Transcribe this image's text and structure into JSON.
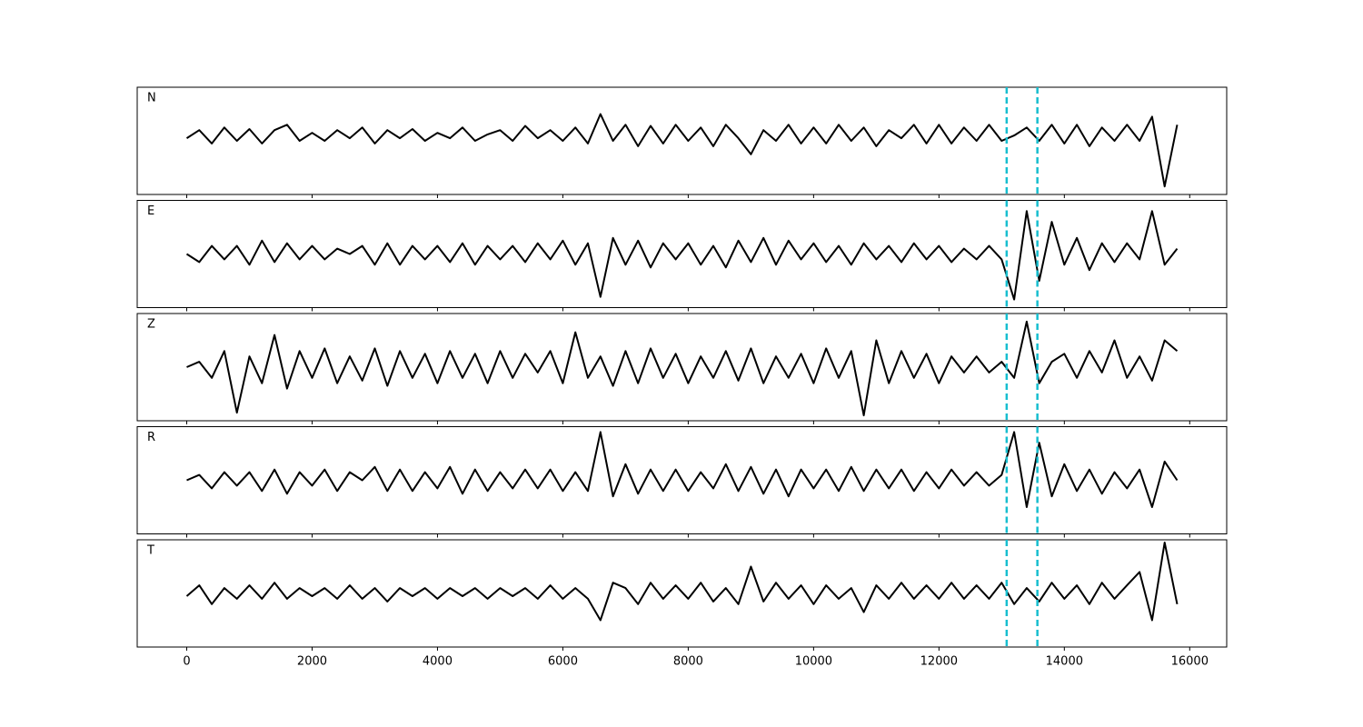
{
  "chart_data": {
    "type": "line",
    "subplots": true,
    "x": [
      0,
      200,
      400,
      600,
      800,
      1000,
      1200,
      1400,
      1600,
      1800,
      2000,
      2200,
      2400,
      2600,
      2800,
      3000,
      3200,
      3400,
      3600,
      3800,
      4000,
      4200,
      4400,
      4600,
      4800,
      5000,
      5200,
      5400,
      5600,
      5800,
      6000,
      6200,
      6400,
      6600,
      6800,
      7000,
      7200,
      7400,
      7600,
      7800,
      8000,
      8200,
      8400,
      8600,
      8800,
      9000,
      9200,
      9400,
      9600,
      9800,
      10000,
      10200,
      10400,
      10600,
      10800,
      11000,
      11200,
      11400,
      11600,
      11800,
      12000,
      12200,
      12400,
      12600,
      12800,
      13000,
      13200,
      13400,
      13600,
      13800,
      14000,
      14200,
      14400,
      14600,
      14800,
      15000,
      15200,
      15400,
      15600,
      15800
    ],
    "xlim": [
      -790,
      16590
    ],
    "xticks": [
      0,
      2000,
      4000,
      6000,
      8000,
      10000,
      12000,
      14000,
      16000
    ],
    "ylim": [
      -1,
      1
    ],
    "series": [
      {
        "name": "N",
        "color": "#000000",
        "values": [
          0.05,
          0.2,
          -0.05,
          0.25,
          0.0,
          0.22,
          -0.05,
          0.2,
          0.3,
          0.0,
          0.15,
          0.0,
          0.2,
          0.05,
          0.25,
          -0.05,
          0.2,
          0.05,
          0.22,
          0.0,
          0.15,
          0.05,
          0.25,
          0.0,
          0.12,
          0.2,
          0.0,
          0.28,
          0.05,
          0.2,
          0.0,
          0.25,
          -0.05,
          0.5,
          0.0,
          0.3,
          -0.1,
          0.28,
          -0.05,
          0.3,
          0.0,
          0.25,
          -0.1,
          0.3,
          0.05,
          -0.25,
          0.2,
          0.0,
          0.3,
          -0.05,
          0.25,
          -0.05,
          0.3,
          0.0,
          0.25,
          -0.1,
          0.2,
          0.05,
          0.3,
          -0.05,
          0.3,
          -0.05,
          0.25,
          0.0,
          0.3,
          0.0,
          0.1,
          0.25,
          0.0,
          0.3,
          -0.05,
          0.3,
          -0.1,
          0.25,
          0.0,
          0.3,
          0.0,
          0.45,
          -0.85,
          0.3
        ]
      },
      {
        "name": "E",
        "color": "#000000",
        "values": [
          0.0,
          -0.15,
          0.15,
          -0.1,
          0.15,
          -0.2,
          0.25,
          -0.15,
          0.2,
          -0.1,
          0.15,
          -0.1,
          0.1,
          0.0,
          0.15,
          -0.2,
          0.2,
          -0.2,
          0.15,
          -0.1,
          0.15,
          -0.15,
          0.2,
          -0.2,
          0.15,
          -0.1,
          0.15,
          -0.15,
          0.2,
          -0.1,
          0.25,
          -0.2,
          0.2,
          -0.8,
          0.3,
          -0.2,
          0.25,
          -0.25,
          0.2,
          -0.1,
          0.2,
          -0.2,
          0.15,
          -0.25,
          0.25,
          -0.15,
          0.3,
          -0.2,
          0.25,
          -0.1,
          0.2,
          -0.15,
          0.15,
          -0.2,
          0.2,
          -0.1,
          0.15,
          -0.15,
          0.2,
          -0.1,
          0.15,
          -0.15,
          0.1,
          -0.1,
          0.15,
          -0.1,
          -0.85,
          0.8,
          -0.5,
          0.6,
          -0.2,
          0.3,
          -0.3,
          0.2,
          -0.15,
          0.2,
          -0.1,
          0.8,
          -0.2,
          0.1
        ]
      },
      {
        "name": "Z",
        "color": "#000000",
        "values": [
          0.0,
          0.1,
          -0.2,
          0.3,
          -0.85,
          0.2,
          -0.3,
          0.6,
          -0.4,
          0.3,
          -0.2,
          0.35,
          -0.3,
          0.2,
          -0.25,
          0.35,
          -0.35,
          0.3,
          -0.2,
          0.25,
          -0.3,
          0.3,
          -0.2,
          0.25,
          -0.3,
          0.3,
          -0.2,
          0.25,
          -0.1,
          0.3,
          -0.3,
          0.65,
          -0.2,
          0.2,
          -0.35,
          0.3,
          -0.3,
          0.35,
          -0.2,
          0.25,
          -0.3,
          0.2,
          -0.2,
          0.3,
          -0.25,
          0.35,
          -0.3,
          0.2,
          -0.2,
          0.25,
          -0.3,
          0.35,
          -0.2,
          0.3,
          -0.9,
          0.5,
          -0.3,
          0.3,
          -0.2,
          0.25,
          -0.3,
          0.2,
          -0.1,
          0.2,
          -0.1,
          0.1,
          -0.2,
          0.85,
          -0.3,
          0.1,
          0.25,
          -0.2,
          0.3,
          -0.1,
          0.5,
          -0.2,
          0.2,
          -0.25,
          0.5,
          0.3
        ]
      },
      {
        "name": "R",
        "color": "#000000",
        "values": [
          0.0,
          0.1,
          -0.15,
          0.15,
          -0.1,
          0.15,
          -0.2,
          0.2,
          -0.25,
          0.15,
          -0.1,
          0.2,
          -0.2,
          0.15,
          0.0,
          0.25,
          -0.2,
          0.2,
          -0.2,
          0.15,
          -0.15,
          0.25,
          -0.25,
          0.2,
          -0.2,
          0.15,
          -0.15,
          0.2,
          -0.15,
          0.2,
          -0.2,
          0.15,
          -0.2,
          0.9,
          -0.3,
          0.3,
          -0.25,
          0.2,
          -0.2,
          0.2,
          -0.2,
          0.15,
          -0.15,
          0.3,
          -0.2,
          0.25,
          -0.25,
          0.2,
          -0.3,
          0.2,
          -0.15,
          0.2,
          -0.2,
          0.25,
          -0.2,
          0.2,
          -0.15,
          0.2,
          -0.2,
          0.15,
          -0.15,
          0.2,
          -0.1,
          0.15,
          -0.1,
          0.1,
          0.9,
          -0.5,
          0.7,
          -0.3,
          0.3,
          -0.2,
          0.2,
          -0.25,
          0.15,
          -0.15,
          0.2,
          -0.5,
          0.35,
          0.0
        ]
      },
      {
        "name": "T",
        "color": "#000000",
        "values": [
          -0.05,
          0.15,
          -0.2,
          0.1,
          -0.1,
          0.15,
          -0.1,
          0.2,
          -0.1,
          0.1,
          -0.05,
          0.1,
          -0.1,
          0.15,
          -0.1,
          0.1,
          -0.15,
          0.1,
          -0.05,
          0.1,
          -0.1,
          0.1,
          -0.05,
          0.1,
          -0.1,
          0.1,
          -0.05,
          0.1,
          -0.1,
          0.15,
          -0.1,
          0.1,
          -0.1,
          -0.5,
          0.2,
          0.1,
          -0.2,
          0.2,
          -0.1,
          0.15,
          -0.1,
          0.2,
          -0.15,
          0.1,
          -0.2,
          0.5,
          -0.15,
          0.2,
          -0.1,
          0.15,
          -0.2,
          0.15,
          -0.1,
          0.1,
          -0.35,
          0.15,
          -0.1,
          0.2,
          -0.1,
          0.15,
          -0.1,
          0.2,
          -0.1,
          0.15,
          -0.1,
          0.2,
          -0.2,
          0.1,
          -0.15,
          0.2,
          -0.1,
          0.15,
          -0.2,
          0.2,
          -0.1,
          0.15,
          0.4,
          -0.5,
          0.95,
          -0.2
        ]
      }
    ],
    "vlines": {
      "values": [
        13080,
        13570
      ],
      "color": "#17becf"
    }
  }
}
